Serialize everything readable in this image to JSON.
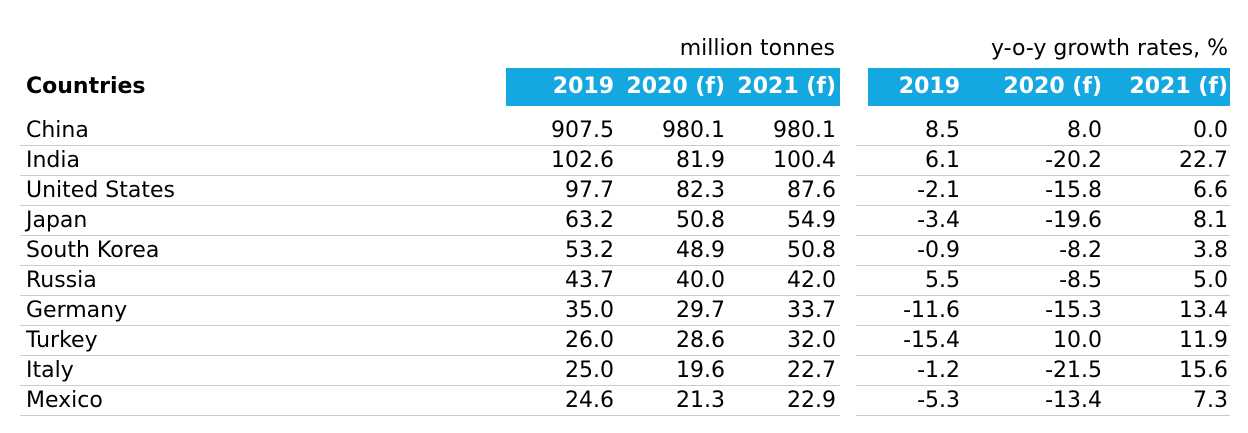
{
  "units": {
    "left": "million tonnes",
    "right": "y-o-y growth rates, %"
  },
  "header": {
    "countries": "Countries",
    "cols": [
      "2019",
      "2020 (f)",
      "2021 (f)",
      "2019",
      "2020 (f)",
      "2021 (f)"
    ]
  },
  "colors": {
    "header_band": "#15a7df",
    "header_text": "#ffffff",
    "separator": "#c8cbd0"
  },
  "rows": [
    {
      "country": "China",
      "mt": [
        "907.5",
        "980.1",
        "980.1"
      ],
      "yoy": [
        "8.5",
        "8.0",
        "0.0"
      ]
    },
    {
      "country": "India",
      "mt": [
        "102.6",
        "81.9",
        "100.4"
      ],
      "yoy": [
        "6.1",
        "-20.2",
        "22.7"
      ]
    },
    {
      "country": "United States",
      "mt": [
        "97.7",
        "82.3",
        "87.6"
      ],
      "yoy": [
        "-2.1",
        "-15.8",
        "6.6"
      ]
    },
    {
      "country": "Japan",
      "mt": [
        "63.2",
        "50.8",
        "54.9"
      ],
      "yoy": [
        "-3.4",
        "-19.6",
        "8.1"
      ]
    },
    {
      "country": "South Korea",
      "mt": [
        "53.2",
        "48.9",
        "50.8"
      ],
      "yoy": [
        "-0.9",
        "-8.2",
        "3.8"
      ]
    },
    {
      "country": "Russia",
      "mt": [
        "43.7",
        "40.0",
        "42.0"
      ],
      "yoy": [
        "5.5",
        "-8.5",
        "5.0"
      ]
    },
    {
      "country": "Germany",
      "mt": [
        "35.0",
        "29.7",
        "33.7"
      ],
      "yoy": [
        "-11.6",
        "-15.3",
        "13.4"
      ]
    },
    {
      "country": "Turkey",
      "mt": [
        "26.0",
        "28.6",
        "32.0"
      ],
      "yoy": [
        "-15.4",
        "10.0",
        "11.9"
      ]
    },
    {
      "country": "Italy",
      "mt": [
        "25.0",
        "19.6",
        "22.7"
      ],
      "yoy": [
        "-1.2",
        "-21.5",
        "15.6"
      ]
    },
    {
      "country": "Mexico",
      "mt": [
        "24.6",
        "21.3",
        "22.9"
      ],
      "yoy": [
        "-5.3",
        "-13.4",
        "7.3"
      ]
    }
  ]
}
